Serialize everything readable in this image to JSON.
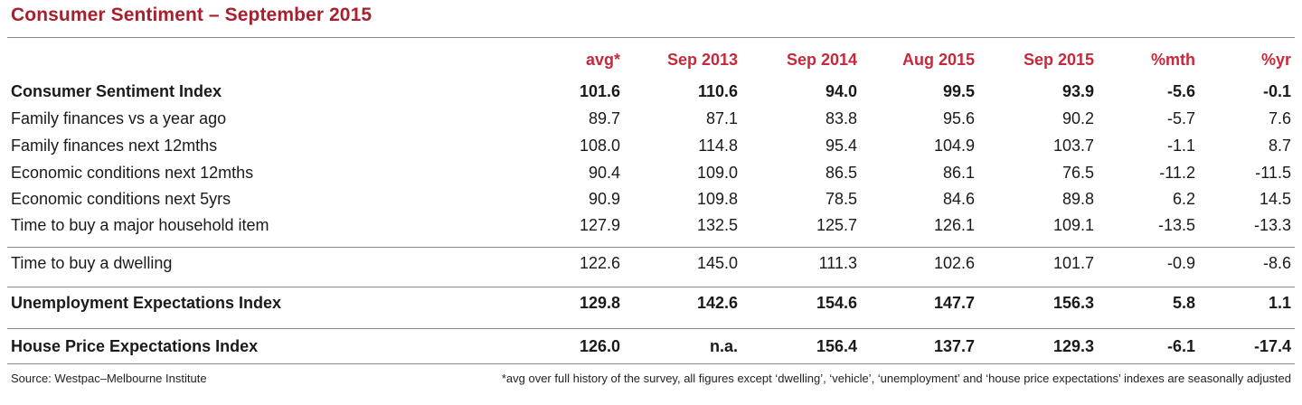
{
  "title": "Consumer Sentiment – September 2015",
  "source": "Source: Westpac–Melbourne Institute",
  "footnote": "*avg over full history of the survey, all figures except ‘dwelling’, ‘vehicle’, ‘unemployment’ and ‘house price expectations’ indexes are seasonally adjusted",
  "chart_data": {
    "type": "table",
    "title": "Consumer Sentiment – September 2015",
    "columns": [
      "avg*",
      "Sep 2013",
      "Sep 2014",
      "Aug 2015",
      "Sep 2015",
      "%mth",
      "%yr"
    ],
    "rows": [
      {
        "label": "Consumer Sentiment Index",
        "bold": true,
        "values": [
          "101.6",
          "110.6",
          "94.0",
          "99.5",
          "93.9",
          "-5.6",
          "-0.1"
        ]
      },
      {
        "label": "Family finances vs a year ago",
        "bold": false,
        "values": [
          "89.7",
          "87.1",
          "83.8",
          "95.6",
          "90.2",
          "-5.7",
          "7.6"
        ]
      },
      {
        "label": "Family finances next 12mths",
        "bold": false,
        "values": [
          "108.0",
          "114.8",
          "95.4",
          "104.9",
          "103.7",
          "-1.1",
          "8.7"
        ]
      },
      {
        "label": "Economic conditions next 12mths",
        "bold": false,
        "values": [
          "90.4",
          "109.0",
          "86.5",
          "86.1",
          "76.5",
          "-11.2",
          "-11.5"
        ]
      },
      {
        "label": "Economic conditions next 5yrs",
        "bold": false,
        "values": [
          "90.9",
          "109.8",
          "78.5",
          "84.6",
          "89.8",
          "6.2",
          "14.5"
        ]
      },
      {
        "label": "Time to buy a major household item",
        "bold": false,
        "values": [
          "127.9",
          "132.5",
          "125.7",
          "126.1",
          "109.1",
          "-13.5",
          "-13.3"
        ]
      },
      {
        "label": "Time to buy a dwelling",
        "bold": false,
        "values": [
          "122.6",
          "145.0",
          "111.3",
          "102.6",
          "101.7",
          "-0.9",
          "-8.6"
        ]
      },
      {
        "label": "Unemployment Expectations Index",
        "bold": true,
        "values": [
          "129.8",
          "142.6",
          "154.6",
          "147.7",
          "156.3",
          "5.8",
          "1.1"
        ]
      },
      {
        "label": "House Price Expectations Index",
        "bold": true,
        "values": [
          "126.0",
          "n.a.",
          "156.4",
          "137.7",
          "129.3",
          "-6.1",
          "-17.4"
        ]
      }
    ],
    "colors": {
      "title": "#a8202e",
      "header": "#c8283a",
      "rule": "#8a8a8a",
      "text": "#1a1a1a"
    }
  }
}
